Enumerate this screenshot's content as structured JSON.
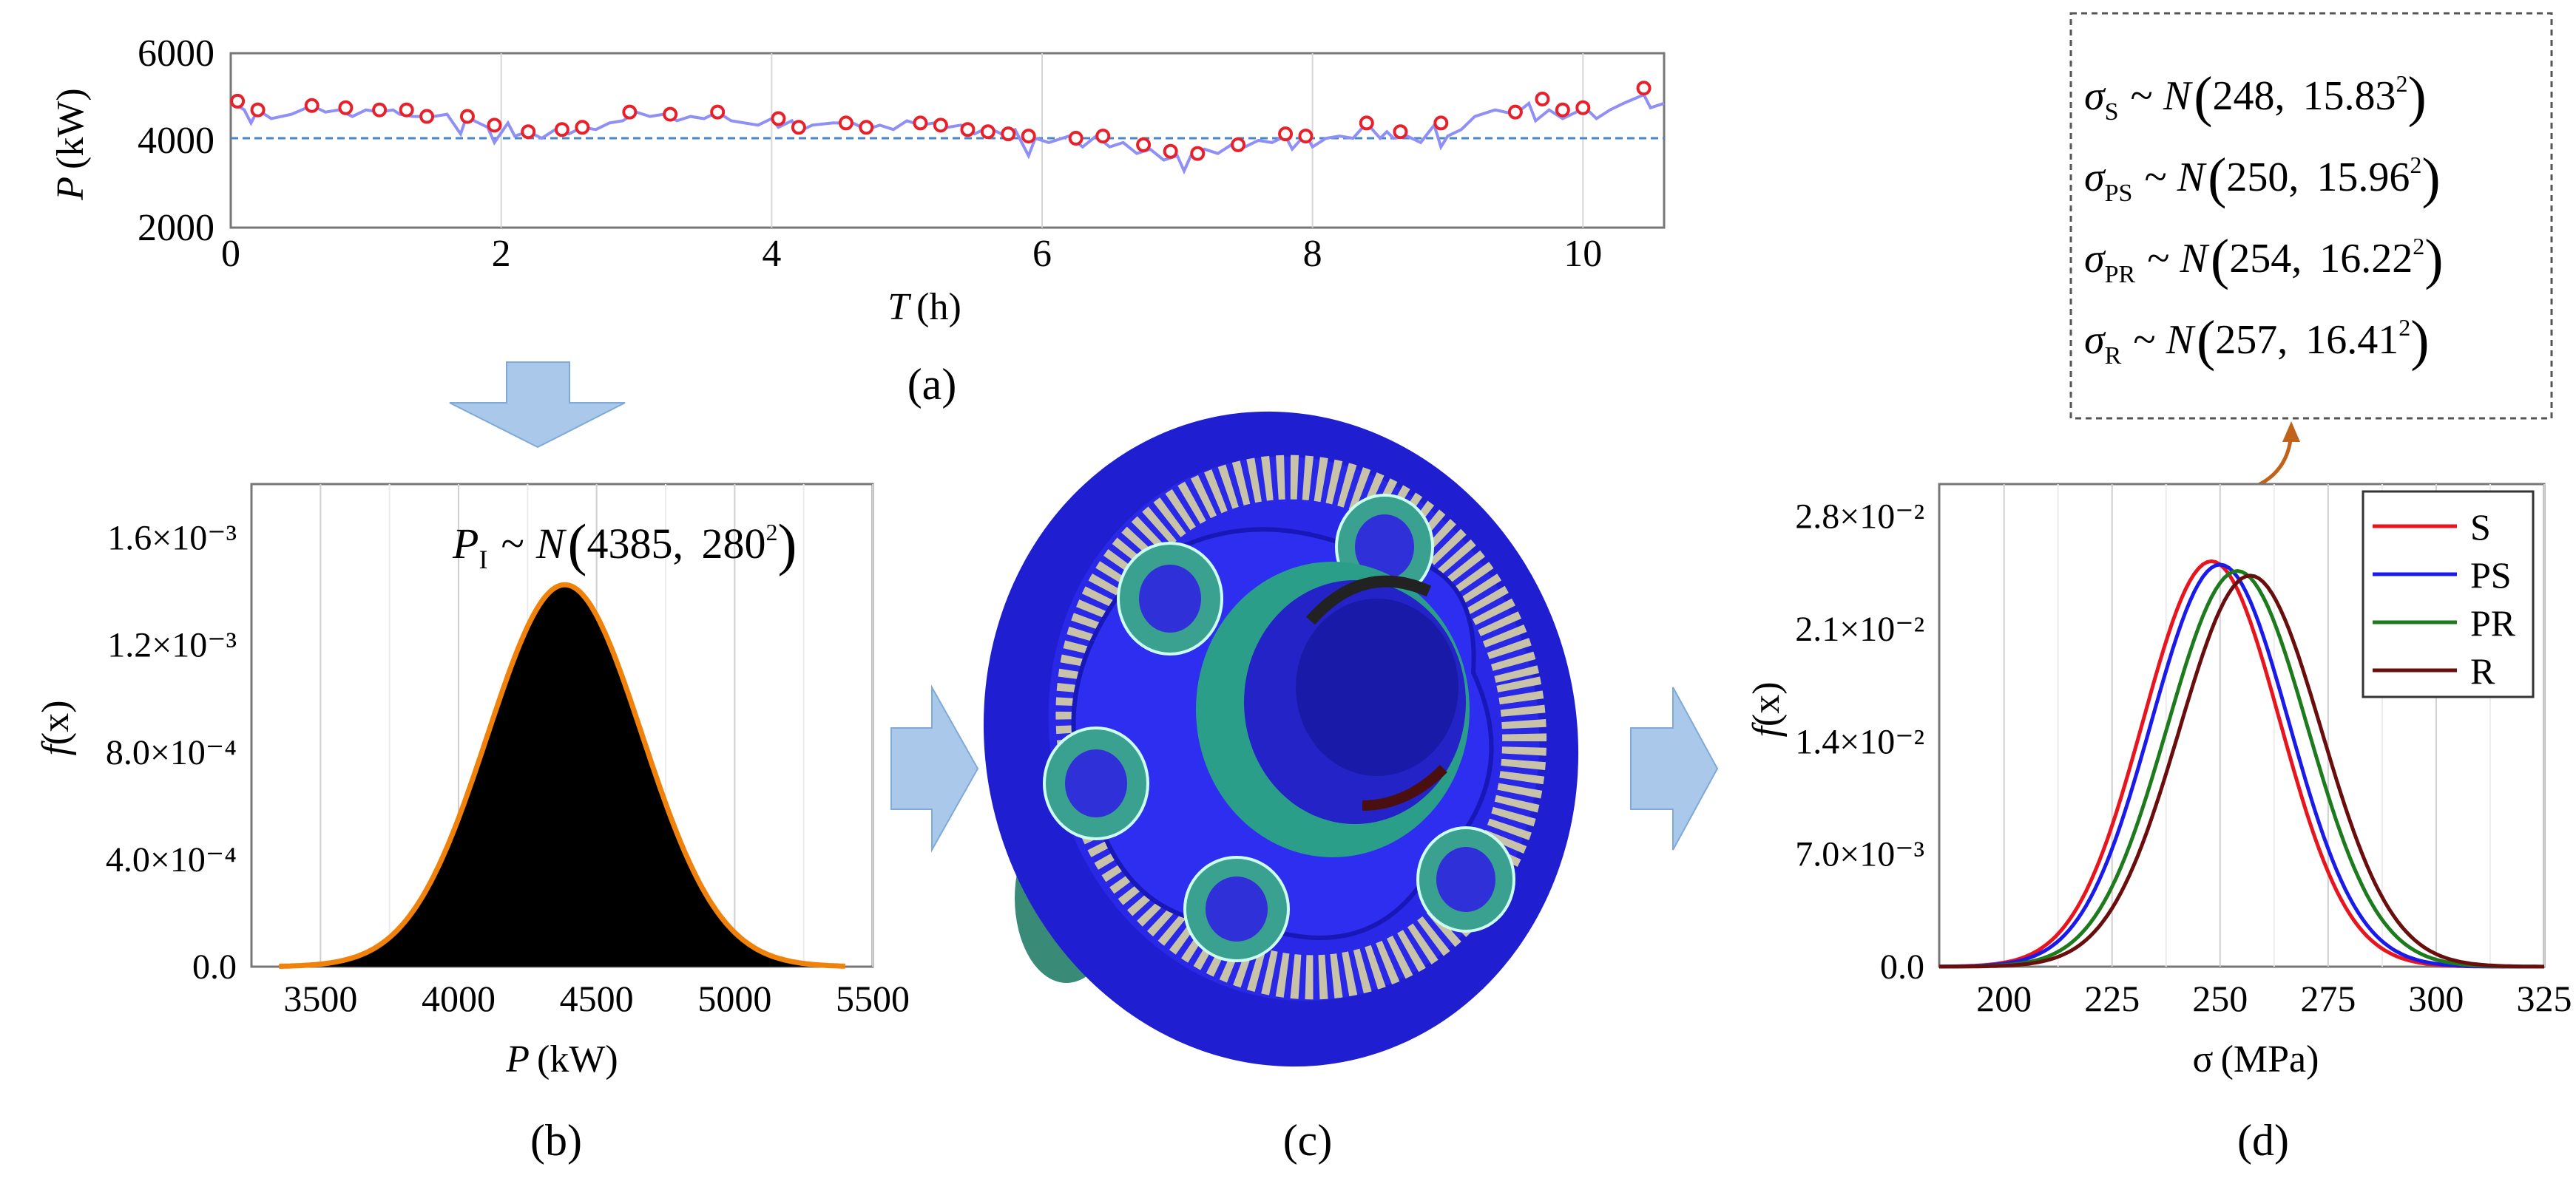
{
  "panels": {
    "a": "(a)",
    "b": "(b)",
    "c": "(c)",
    "d": "(d)"
  },
  "annotations": {
    "dist_lines": [
      {
        "sym": "σ",
        "sub": "S",
        "mean": "248",
        "sd": "15.83"
      },
      {
        "sym": "σ",
        "sub": "PS",
        "mean": "250",
        "sd": "15.96"
      },
      {
        "sym": "σ",
        "sub": "PR",
        "mean": "254",
        "sd": "16.22"
      },
      {
        "sym": "σ",
        "sub": "R",
        "mean": "257",
        "sd": "16.41"
      }
    ],
    "input": {
      "sym": "P",
      "sub": "I",
      "mean": "4385",
      "sd": "280"
    },
    "tilde": "~",
    "normal": "N",
    "exp": "2"
  },
  "colors": {
    "arrow": "#a9c8ea",
    "arrow_stroke": "#7fa9d6",
    "power_line": "#8f90f5",
    "power_dots": "#e8202a",
    "mean_line": "#4a86c9",
    "pdf_fill": "#000000",
    "pdf_line": "#f0820c",
    "series": [
      "#e8141e",
      "#1a1aeb",
      "#1d7a1d",
      "#6a0d0d"
    ],
    "callout": "#c0621a",
    "gear_blue": "#2020d8",
    "gear_teal": "#3a9a8a"
  },
  "chart_data": [
    {
      "id": "a",
      "type": "line",
      "xlabel": {
        "sym": "T",
        "unit": "(h)"
      },
      "ylabel": {
        "sym": "P",
        "unit": "(kW)"
      },
      "xlim": [
        0,
        10.6
      ],
      "ylim": [
        2000,
        6000
      ],
      "xticks": [
        "0",
        "2",
        "4",
        "6",
        "8",
        "10"
      ],
      "yticks": [
        "2000",
        "4000",
        "6000"
      ],
      "grid": "vertical",
      "reference_line": 4050,
      "series": [
        {
          "x": [
            0,
            0.1,
            0.15,
            0.2,
            0.25,
            0.3,
            0.45,
            0.6,
            0.7,
            0.8,
            0.9,
            1.0,
            1.1,
            1.2,
            1.25,
            1.35,
            1.5,
            1.6,
            1.7,
            1.75,
            1.8,
            1.9,
            1.95,
            2.05,
            2.1,
            2.2,
            2.3,
            2.4,
            2.5,
            2.6,
            2.7,
            2.8,
            2.9,
            3.0,
            3.1,
            3.2,
            3.3,
            3.4,
            3.5,
            3.6,
            3.7,
            3.8,
            3.9,
            4.0,
            4.05,
            4.15,
            4.2,
            4.3,
            4.45,
            4.6,
            4.7,
            4.8,
            4.9,
            5.0,
            5.1,
            5.2,
            5.3,
            5.4,
            5.5,
            5.6,
            5.7,
            5.8,
            5.9,
            5.95,
            6.05,
            6.2,
            6.3,
            6.4,
            6.5,
            6.6,
            6.7,
            6.8,
            6.9,
            7.0,
            7.05,
            7.1,
            7.2,
            7.3,
            7.4,
            7.5,
            7.6,
            7.7,
            7.8,
            7.85,
            7.95,
            8.0,
            8.1,
            8.2,
            8.3,
            8.4,
            8.5,
            8.55,
            8.6,
            8.7,
            8.8,
            8.9,
            8.95,
            9.0,
            9.1,
            9.2,
            9.35,
            9.5,
            9.6,
            9.65,
            9.75,
            9.85,
            9.95,
            10.0,
            10.1,
            10.2,
            10.3,
            10.45,
            10.5,
            10.6
          ],
          "y": [
            4900,
            4700,
            4400,
            4700,
            4600,
            4500,
            4600,
            4800,
            4650,
            4700,
            4550,
            4700,
            4650,
            4700,
            4600,
            4550,
            4550,
            4600,
            4150,
            4600,
            4450,
            4300,
            3950,
            4400,
            4100,
            4200,
            4050,
            4250,
            4150,
            4300,
            4250,
            4400,
            4450,
            4650,
            4550,
            4600,
            4450,
            4550,
            4500,
            4650,
            4450,
            4400,
            4350,
            4500,
            4300,
            4450,
            4200,
            4350,
            4400,
            4400,
            4250,
            4350,
            4250,
            4450,
            4350,
            4400,
            4300,
            4350,
            4150,
            4300,
            4150,
            4250,
            3650,
            4050,
            3950,
            4100,
            3850,
            4100,
            3850,
            3950,
            3700,
            3800,
            3550,
            3650,
            3300,
            3650,
            3800,
            3700,
            3900,
            3850,
            4000,
            3950,
            4100,
            3800,
            4150,
            3850,
            4050,
            4100,
            4050,
            4400,
            4050,
            4200,
            4050,
            4100,
            3950,
            4350,
            3850,
            4100,
            4250,
            4550,
            4700,
            4600,
            4850,
            4450,
            4700,
            4500,
            4650,
            4800,
            4500,
            4700,
            4850,
            5050,
            4750,
            4850
          ],
          "markers_x": [
            0.05,
            0.2,
            0.6,
            0.85,
            1.1,
            1.3,
            1.45,
            1.75,
            1.95,
            2.2,
            2.45,
            2.6,
            2.95,
            3.25,
            3.6,
            4.05,
            4.2,
            4.55,
            4.7,
            5.1,
            5.25,
            5.45,
            5.6,
            5.75,
            5.9,
            6.25,
            6.45,
            6.75,
            6.95,
            7.15,
            7.45,
            7.8,
            7.95,
            8.4,
            8.65,
            8.95,
            9.5,
            9.7,
            9.85,
            10.0,
            10.45
          ],
          "markers_y": [
            4900,
            4700,
            4800,
            4750,
            4700,
            4700,
            4550,
            4550,
            4350,
            4200,
            4250,
            4300,
            4650,
            4600,
            4650,
            4500,
            4300,
            4400,
            4300,
            4400,
            4350,
            4250,
            4200,
            4150,
            4100,
            4050,
            4100,
            3900,
            3750,
            3700,
            3900,
            4150,
            4100,
            4400,
            4200,
            4400,
            4650,
            4950,
            4700,
            4750,
            5200
          ]
        }
      ]
    },
    {
      "id": "b",
      "type": "area",
      "xlabel": {
        "sym": "P",
        "unit": "(kW)"
      },
      "ylabel": {
        "sym": "f",
        "arg": "(x)"
      },
      "xlim": [
        3250,
        5500
      ],
      "ylim": [
        0,
        0.0018
      ],
      "xticks": [
        "3500",
        "4000",
        "4500",
        "5000",
        "5500"
      ],
      "xtick_values": [
        3500,
        4000,
        4500,
        5000,
        5500
      ],
      "yticks": [
        "0.0",
        "4.0×10⁻⁴",
        "8.0×10⁻⁴",
        "1.2×10⁻³",
        "1.6×10⁻³"
      ],
      "ytick_values": [
        0,
        0.0004,
        0.0008,
        0.0012,
        0.0016
      ],
      "grid": "vertical",
      "series": [
        {
          "mean": 4385,
          "sd": 280,
          "x_range": [
            3350,
            5400
          ]
        }
      ]
    },
    {
      "id": "d",
      "type": "line",
      "xlabel": {
        "sym": "σ",
        "unit": "(MPa)"
      },
      "ylabel": {
        "sym": "f",
        "arg": "(x)"
      },
      "xlim": [
        185,
        325
      ],
      "ylim": [
        0,
        0.03
      ],
      "xticks": [
        "200",
        "225",
        "250",
        "275",
        "300",
        "325"
      ],
      "xtick_values": [
        200,
        225,
        250,
        275,
        300,
        325
      ],
      "yticks": [
        "0.0",
        "7.0×10⁻³",
        "1.4×10⁻²",
        "2.1×10⁻²",
        "2.8×10⁻²"
      ],
      "ytick_values": [
        0,
        0.007,
        0.014,
        0.021,
        0.028
      ],
      "grid": "vertical",
      "legend": "top-right",
      "series": [
        {
          "name": "S",
          "mean": 248,
          "sd": 15.83
        },
        {
          "name": "PS",
          "mean": 250,
          "sd": 15.96
        },
        {
          "name": "PR",
          "mean": 254,
          "sd": 16.22
        },
        {
          "name": "R",
          "mean": 257,
          "sd": 16.41
        }
      ]
    }
  ]
}
